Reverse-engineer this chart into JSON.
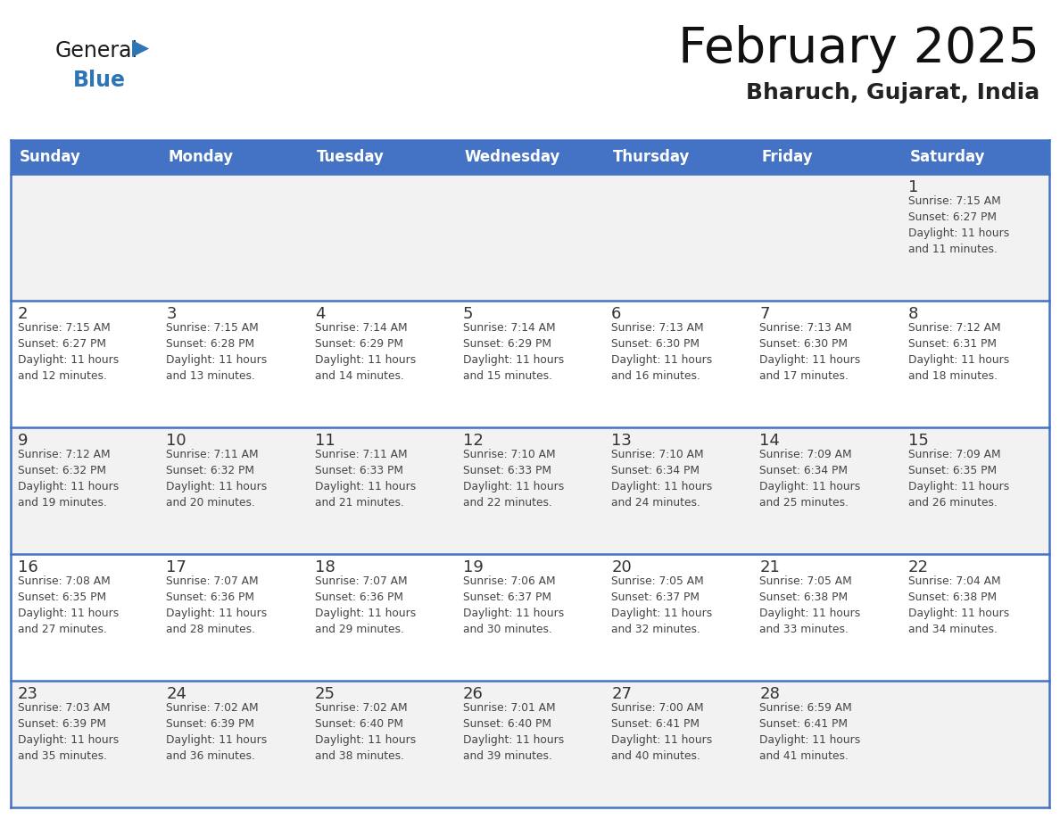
{
  "title": "February 2025",
  "subtitle": "Bharuch, Gujarat, India",
  "header_bg": "#4472C4",
  "header_text_color": "#FFFFFF",
  "day_names": [
    "Sunday",
    "Monday",
    "Tuesday",
    "Wednesday",
    "Thursday",
    "Friday",
    "Saturday"
  ],
  "row_bg_odd": "#F2F2F2",
  "row_bg_even": "#FFFFFF",
  "cell_border_color": "#4472C4",
  "date_color": "#333333",
  "info_color": "#444444",
  "title_color": "#111111",
  "subtitle_color": "#222222",
  "general_color": "#1a1a1a",
  "blue_color": "#2e75b6",
  "calendar": [
    [
      {
        "day": null,
        "info": null
      },
      {
        "day": null,
        "info": null
      },
      {
        "day": null,
        "info": null
      },
      {
        "day": null,
        "info": null
      },
      {
        "day": null,
        "info": null
      },
      {
        "day": null,
        "info": null
      },
      {
        "day": 1,
        "info": "Sunrise: 7:15 AM\nSunset: 6:27 PM\nDaylight: 11 hours\nand 11 minutes."
      }
    ],
    [
      {
        "day": 2,
        "info": "Sunrise: 7:15 AM\nSunset: 6:27 PM\nDaylight: 11 hours\nand 12 minutes."
      },
      {
        "day": 3,
        "info": "Sunrise: 7:15 AM\nSunset: 6:28 PM\nDaylight: 11 hours\nand 13 minutes."
      },
      {
        "day": 4,
        "info": "Sunrise: 7:14 AM\nSunset: 6:29 PM\nDaylight: 11 hours\nand 14 minutes."
      },
      {
        "day": 5,
        "info": "Sunrise: 7:14 AM\nSunset: 6:29 PM\nDaylight: 11 hours\nand 15 minutes."
      },
      {
        "day": 6,
        "info": "Sunrise: 7:13 AM\nSunset: 6:30 PM\nDaylight: 11 hours\nand 16 minutes."
      },
      {
        "day": 7,
        "info": "Sunrise: 7:13 AM\nSunset: 6:30 PM\nDaylight: 11 hours\nand 17 minutes."
      },
      {
        "day": 8,
        "info": "Sunrise: 7:12 AM\nSunset: 6:31 PM\nDaylight: 11 hours\nand 18 minutes."
      }
    ],
    [
      {
        "day": 9,
        "info": "Sunrise: 7:12 AM\nSunset: 6:32 PM\nDaylight: 11 hours\nand 19 minutes."
      },
      {
        "day": 10,
        "info": "Sunrise: 7:11 AM\nSunset: 6:32 PM\nDaylight: 11 hours\nand 20 minutes."
      },
      {
        "day": 11,
        "info": "Sunrise: 7:11 AM\nSunset: 6:33 PM\nDaylight: 11 hours\nand 21 minutes."
      },
      {
        "day": 12,
        "info": "Sunrise: 7:10 AM\nSunset: 6:33 PM\nDaylight: 11 hours\nand 22 minutes."
      },
      {
        "day": 13,
        "info": "Sunrise: 7:10 AM\nSunset: 6:34 PM\nDaylight: 11 hours\nand 24 minutes."
      },
      {
        "day": 14,
        "info": "Sunrise: 7:09 AM\nSunset: 6:34 PM\nDaylight: 11 hours\nand 25 minutes."
      },
      {
        "day": 15,
        "info": "Sunrise: 7:09 AM\nSunset: 6:35 PM\nDaylight: 11 hours\nand 26 minutes."
      }
    ],
    [
      {
        "day": 16,
        "info": "Sunrise: 7:08 AM\nSunset: 6:35 PM\nDaylight: 11 hours\nand 27 minutes."
      },
      {
        "day": 17,
        "info": "Sunrise: 7:07 AM\nSunset: 6:36 PM\nDaylight: 11 hours\nand 28 minutes."
      },
      {
        "day": 18,
        "info": "Sunrise: 7:07 AM\nSunset: 6:36 PM\nDaylight: 11 hours\nand 29 minutes."
      },
      {
        "day": 19,
        "info": "Sunrise: 7:06 AM\nSunset: 6:37 PM\nDaylight: 11 hours\nand 30 minutes."
      },
      {
        "day": 20,
        "info": "Sunrise: 7:05 AM\nSunset: 6:37 PM\nDaylight: 11 hours\nand 32 minutes."
      },
      {
        "day": 21,
        "info": "Sunrise: 7:05 AM\nSunset: 6:38 PM\nDaylight: 11 hours\nand 33 minutes."
      },
      {
        "day": 22,
        "info": "Sunrise: 7:04 AM\nSunset: 6:38 PM\nDaylight: 11 hours\nand 34 minutes."
      }
    ],
    [
      {
        "day": 23,
        "info": "Sunrise: 7:03 AM\nSunset: 6:39 PM\nDaylight: 11 hours\nand 35 minutes."
      },
      {
        "day": 24,
        "info": "Sunrise: 7:02 AM\nSunset: 6:39 PM\nDaylight: 11 hours\nand 36 minutes."
      },
      {
        "day": 25,
        "info": "Sunrise: 7:02 AM\nSunset: 6:40 PM\nDaylight: 11 hours\nand 38 minutes."
      },
      {
        "day": 26,
        "info": "Sunrise: 7:01 AM\nSunset: 6:40 PM\nDaylight: 11 hours\nand 39 minutes."
      },
      {
        "day": 27,
        "info": "Sunrise: 7:00 AM\nSunset: 6:41 PM\nDaylight: 11 hours\nand 40 minutes."
      },
      {
        "day": 28,
        "info": "Sunrise: 6:59 AM\nSunset: 6:41 PM\nDaylight: 11 hours\nand 41 minutes."
      },
      {
        "day": null,
        "info": null
      }
    ]
  ]
}
